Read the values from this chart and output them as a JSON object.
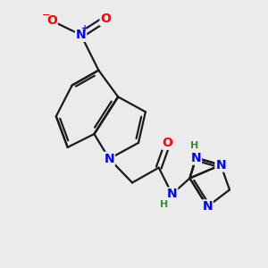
{
  "bg_color": "#ebebeb",
  "bond_color": "#1a1a1a",
  "atom_colors": {
    "N": "#0000ff",
    "O": "#ff0000",
    "C": "#1a1a1a",
    "H": "#3a8a3a"
  },
  "bond_width": 1.6,
  "font_size_atom": 10,
  "font_size_H": 8,
  "font_size_charge": 7
}
